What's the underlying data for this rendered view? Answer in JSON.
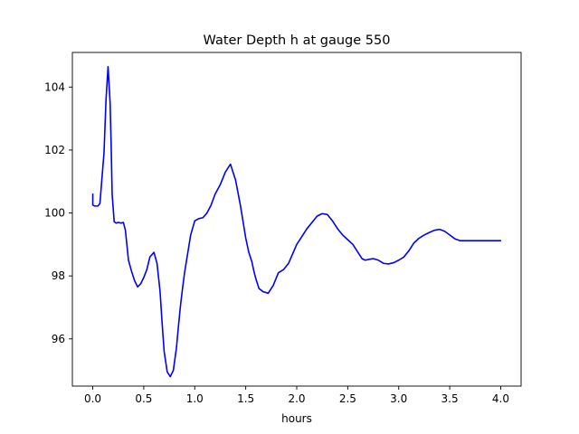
{
  "chart_data": {
    "type": "line",
    "title": "Water Depth h at gauge 550",
    "xlabel": "hours",
    "ylabel": "",
    "xlim": [
      -0.2,
      4.2
    ],
    "ylim": [
      94.5,
      105.1
    ],
    "xticks": [
      0.0,
      0.5,
      1.0,
      1.5,
      2.0,
      2.5,
      3.0,
      3.5,
      4.0
    ],
    "xtick_labels": [
      "0.0",
      "0.5",
      "1.0",
      "1.5",
      "2.0",
      "2.5",
      "3.0",
      "3.5",
      "4.0"
    ],
    "yticks": [
      96,
      98,
      100,
      102,
      104
    ],
    "ytick_labels": [
      "96",
      "98",
      "100",
      "102",
      "104"
    ],
    "grid": false,
    "series": [
      {
        "color": "#0000ff",
        "x": [
          0.0,
          0.0,
          0.02,
          0.05,
          0.07,
          0.09,
          0.11,
          0.13,
          0.15,
          0.17,
          0.18,
          0.19,
          0.21,
          0.23,
          0.25,
          0.28,
          0.3,
          0.32,
          0.35,
          0.38,
          0.41,
          0.44,
          0.47,
          0.5,
          0.53,
          0.56,
          0.6,
          0.63,
          0.66,
          0.68,
          0.7,
          0.73,
          0.76,
          0.79,
          0.82,
          0.84,
          0.86,
          0.88,
          0.9,
          0.93,
          0.96,
          1.0,
          1.04,
          1.08,
          1.12,
          1.16,
          1.2,
          1.25,
          1.3,
          1.35,
          1.4,
          1.45,
          1.5,
          1.53,
          1.56,
          1.58,
          1.6,
          1.63,
          1.67,
          1.72,
          1.77,
          1.82,
          1.87,
          1.92,
          1.96,
          2.0,
          2.05,
          2.1,
          2.15,
          2.2,
          2.25,
          2.3,
          2.35,
          2.4,
          2.45,
          2.5,
          2.55,
          2.6,
          2.64,
          2.67,
          2.7,
          2.75,
          2.8,
          2.85,
          2.9,
          2.95,
          3.0,
          3.05,
          3.1,
          3.15,
          3.2,
          3.25,
          3.3,
          3.35,
          3.4,
          3.45,
          3.5,
          3.55,
          3.6,
          3.65,
          3.7,
          3.75,
          3.8,
          3.85,
          3.9,
          3.95,
          4.0
        ],
        "y": [
          100.6,
          100.25,
          100.22,
          100.22,
          100.3,
          101.1,
          101.9,
          103.6,
          104.65,
          103.5,
          102.2,
          100.6,
          99.72,
          99.68,
          99.7,
          99.68,
          99.7,
          99.45,
          98.5,
          98.15,
          97.85,
          97.65,
          97.75,
          97.95,
          98.2,
          98.6,
          98.75,
          98.4,
          97.5,
          96.5,
          95.6,
          94.95,
          94.8,
          95.0,
          95.7,
          96.4,
          97.05,
          97.6,
          98.1,
          98.7,
          99.3,
          99.75,
          99.82,
          99.85,
          100.0,
          100.25,
          100.6,
          100.9,
          101.3,
          101.55,
          101.05,
          100.2,
          99.2,
          98.75,
          98.45,
          98.15,
          97.9,
          97.6,
          97.5,
          97.45,
          97.7,
          98.1,
          98.2,
          98.4,
          98.7,
          99.0,
          99.25,
          99.5,
          99.7,
          99.9,
          99.98,
          99.95,
          99.75,
          99.5,
          99.3,
          99.15,
          99.0,
          98.75,
          98.55,
          98.5,
          98.52,
          98.55,
          98.5,
          98.4,
          98.38,
          98.42,
          98.5,
          98.6,
          98.8,
          99.05,
          99.2,
          99.3,
          99.38,
          99.45,
          99.48,
          99.42,
          99.3,
          99.18,
          99.12,
          99.12,
          99.12,
          99.12,
          99.12,
          99.12,
          99.12,
          99.12,
          99.12
        ]
      }
    ]
  }
}
